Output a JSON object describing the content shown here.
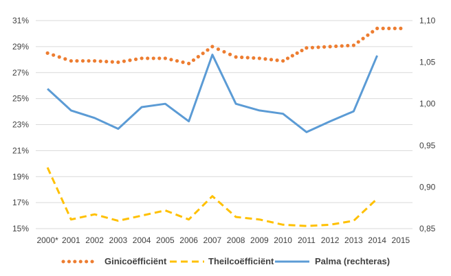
{
  "chart_data": {
    "type": "line",
    "title": "",
    "categories": [
      "2000*",
      "2001",
      "2002",
      "2003",
      "2004",
      "2005",
      "2006",
      "2007",
      "2008",
      "2009",
      "2010",
      "2011",
      "2012",
      "2013",
      "2014",
      "2015"
    ],
    "y_left": {
      "ticks": [
        "15%",
        "17%",
        "19%",
        "21%",
        "23%",
        "25%",
        "27%",
        "29%",
        "31%"
      ],
      "ylim": [
        15,
        31
      ],
      "unit": "%"
    },
    "y_right": {
      "ticks": [
        "0,85",
        "0,90",
        "0,95",
        "1,00",
        "1,05",
        "1,10"
      ],
      "ylim": [
        0.85,
        1.1
      ]
    },
    "grid": true,
    "legend_position": "bottom",
    "series": [
      {
        "name": "Ginicoëfficiënt",
        "axis": "left",
        "style": "dotted",
        "color": "#ED7D31",
        "values": [
          28.5,
          27.9,
          27.9,
          27.8,
          28.1,
          28.1,
          27.7,
          29.0,
          28.2,
          28.1,
          27.9,
          28.9,
          29.0,
          29.1,
          30.4,
          30.4
        ]
      },
      {
        "name": "Theilcoëfficiënt",
        "axis": "left",
        "style": "dashed",
        "color": "#FFC000",
        "values": [
          19.7,
          15.7,
          16.1,
          15.6,
          16.0,
          16.4,
          15.7,
          17.5,
          15.9,
          15.7,
          15.3,
          15.2,
          15.3,
          15.6,
          17.3,
          null
        ]
      },
      {
        "name": "Palma (rechteras)",
        "axis": "right",
        "style": "solid",
        "color": "#5B9BD5",
        "values": [
          1.018,
          0.992,
          0.983,
          0.97,
          0.996,
          1.0,
          0.979,
          1.059,
          1.0,
          0.992,
          0.988,
          0.966,
          0.979,
          0.991,
          1.058,
          null
        ]
      }
    ]
  }
}
